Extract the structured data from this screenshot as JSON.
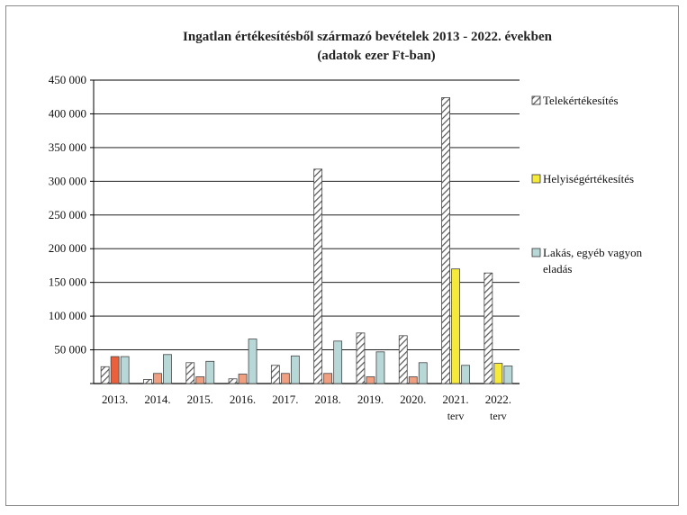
{
  "chart_data": {
    "type": "bar",
    "title": "Ingatlan értékesítésből származó bevételek 2013 - 2022. években",
    "subtitle": "(adatok ezer Ft-ban)",
    "xlabel": "",
    "ylabel": "",
    "ylim": [
      0,
      450000
    ],
    "yticks": [
      0,
      50000,
      100000,
      150000,
      200000,
      250000,
      300000,
      350000,
      400000,
      450000
    ],
    "ytick_labels": [
      "",
      "50 000",
      "100 000",
      "150 000",
      "200 000",
      "250 000",
      "300 000",
      "350 000",
      "400 000",
      "450 000"
    ],
    "grid": true,
    "legend_position": "right",
    "categories": [
      {
        "label": "2013.",
        "sub": ""
      },
      {
        "label": "2014.",
        "sub": ""
      },
      {
        "label": "2015.",
        "sub": ""
      },
      {
        "label": "2016.",
        "sub": ""
      },
      {
        "label": "2017.",
        "sub": ""
      },
      {
        "label": "2018.",
        "sub": ""
      },
      {
        "label": "2019.",
        "sub": ""
      },
      {
        "label": "2020.",
        "sub": ""
      },
      {
        "label": "2021.",
        "sub": "terv"
      },
      {
        "label": "2022.",
        "sub": "terv"
      }
    ],
    "series": [
      {
        "name": "Telekértékesítés",
        "pattern": "hatch",
        "color": "#6e6e6e",
        "values": [
          25000,
          6000,
          31000,
          7000,
          27000,
          318000,
          75000,
          71000,
          424000,
          164000
        ]
      },
      {
        "name": "Helyiségértékesítés",
        "colors": [
          "#e8603c",
          "#f0a080",
          "#f0a080",
          "#f0a080",
          "#f0a080",
          "#f0a080",
          "#f0a080",
          "#f0a080",
          "#f5e93a",
          "#f5e93a"
        ],
        "color": "#f5e93a",
        "values": [
          40000,
          15000,
          10000,
          14000,
          15000,
          15000,
          10000,
          10000,
          170000,
          30000
        ]
      },
      {
        "name": "Lakás, egyéb vagyon eladás",
        "color": "#b8d8d8",
        "values": [
          40000,
          43000,
          33000,
          66000,
          41000,
          63000,
          47000,
          31000,
          27000,
          26000
        ]
      }
    ]
  }
}
